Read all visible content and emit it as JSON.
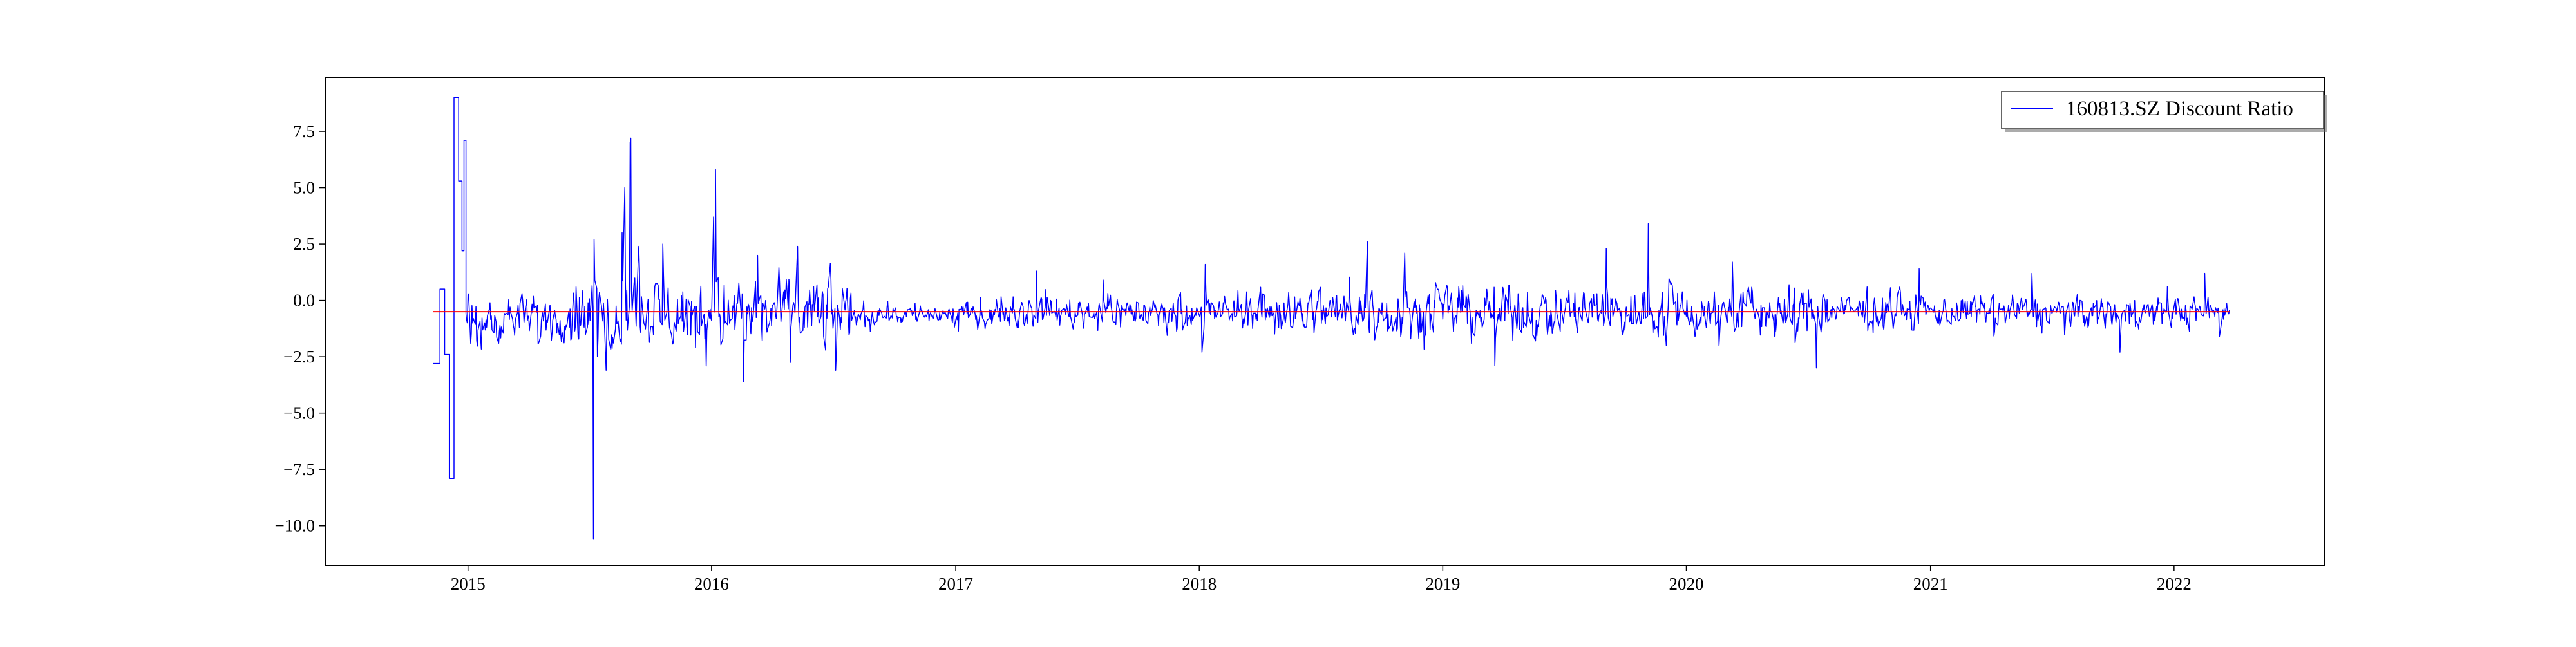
{
  "chart_data": {
    "type": "line",
    "title": "",
    "xlabel": "",
    "ylabel": "",
    "xlim": [
      "2014-06-01",
      "2022-08-15"
    ],
    "ylim": [
      -11.75,
      9.9
    ],
    "grid": false,
    "legend_position": "top-right",
    "x_ticks": [
      {
        "label": "2015",
        "date": "2015-01-01"
      },
      {
        "label": "2016",
        "date": "2016-01-01"
      },
      {
        "label": "2017",
        "date": "2017-01-01"
      },
      {
        "label": "2018",
        "date": "2018-01-01"
      },
      {
        "label": "2019",
        "date": "2019-01-01"
      },
      {
        "label": "2020",
        "date": "2020-01-01"
      },
      {
        "label": "2021",
        "date": "2021-01-01"
      },
      {
        "label": "2022",
        "date": "2022-01-01"
      }
    ],
    "y_ticks": [
      {
        "label": "7.5",
        "value": 7.5
      },
      {
        "label": "5.0",
        "value": 5.0
      },
      {
        "label": "2.5",
        "value": 2.5
      },
      {
        "label": "0.0",
        "value": 0.0
      },
      {
        "label": "−2.5",
        "value": -2.5
      },
      {
        "label": "−5.0",
        "value": -5.0
      },
      {
        "label": "−7.5",
        "value": -7.5
      },
      {
        "label": "−10.0",
        "value": -10.0
      }
    ],
    "series": [
      {
        "name": "160813.SZ Discount Ratio",
        "color": "#0000ff",
        "step_section": [
          {
            "x": "2014-11-10",
            "y": -2.8
          },
          {
            "x": "2014-11-20",
            "y": 0.5
          },
          {
            "x": "2014-11-27",
            "y": -2.4
          },
          {
            "x": "2014-12-04",
            "y": -7.9
          },
          {
            "x": "2014-12-11",
            "y": 9.0
          },
          {
            "x": "2014-12-18",
            "y": 5.3
          },
          {
            "x": "2014-12-23",
            "y": 2.2
          },
          {
            "x": "2014-12-26",
            "y": 7.1
          },
          {
            "x": "2014-12-29",
            "y": -0.6
          }
        ],
        "spikes": [
          {
            "x": "2015-06-12",
            "y": 0.6
          },
          {
            "x": "2015-07-08",
            "y": -10.6
          },
          {
            "x": "2015-07-09",
            "y": 2.7
          },
          {
            "x": "2015-07-27",
            "y": -3.1
          },
          {
            "x": "2015-08-20",
            "y": 3.0
          },
          {
            "x": "2015-08-24",
            "y": 5.0
          },
          {
            "x": "2015-09-01",
            "y": 7.0
          },
          {
            "x": "2015-09-02",
            "y": 7.2
          },
          {
            "x": "2015-09-14",
            "y": 2.4
          },
          {
            "x": "2015-10-20",
            "y": 2.5
          },
          {
            "x": "2016-01-04",
            "y": 3.7
          },
          {
            "x": "2016-01-07",
            "y": 5.8
          },
          {
            "x": "2016-02-18",
            "y": -3.6
          },
          {
            "x": "2016-03-10",
            "y": 2.0
          },
          {
            "x": "2016-05-09",
            "y": 2.4
          },
          {
            "x": "2016-07-05",
            "y": -3.1
          },
          {
            "x": "2017-05-02",
            "y": 1.3
          },
          {
            "x": "2017-08-10",
            "y": 0.9
          },
          {
            "x": "2018-01-05",
            "y": -2.3
          },
          {
            "x": "2018-01-10",
            "y": 1.6
          },
          {
            "x": "2018-09-10",
            "y": 2.6
          },
          {
            "x": "2018-11-05",
            "y": 2.1
          },
          {
            "x": "2019-03-20",
            "y": -2.9
          },
          {
            "x": "2019-09-03",
            "y": 2.3
          },
          {
            "x": "2019-11-05",
            "y": 3.4
          },
          {
            "x": "2019-12-02",
            "y": -2.0
          },
          {
            "x": "2020-03-10",
            "y": 1.7
          },
          {
            "x": "2020-07-14",
            "y": -3.0
          },
          {
            "x": "2020-12-15",
            "y": 1.4
          },
          {
            "x": "2021-06-02",
            "y": 1.2
          },
          {
            "x": "2021-10-12",
            "y": -2.3
          },
          {
            "x": "2022-02-16",
            "y": 1.2
          },
          {
            "x": "2022-03-10",
            "y": -1.6
          }
        ],
        "noise_bands": [
          {
            "from": "2015-01-01",
            "to": "2015-06-01",
            "mean": -0.8,
            "amplitude": 0.9
          },
          {
            "from": "2015-06-01",
            "to": "2016-08-01",
            "mean": -0.6,
            "amplitude": 1.5
          },
          {
            "from": "2016-08-01",
            "to": "2017-04-01",
            "mean": -0.6,
            "amplitude": 0.5
          },
          {
            "from": "2017-04-01",
            "to": "2018-04-01",
            "mean": -0.5,
            "amplitude": 0.7
          },
          {
            "from": "2018-04-01",
            "to": "2019-06-01",
            "mean": -0.5,
            "amplitude": 1.1
          },
          {
            "from": "2019-06-01",
            "to": "2020-08-01",
            "mean": -0.5,
            "amplitude": 1.1
          },
          {
            "from": "2020-08-01",
            "to": "2022-03-25",
            "mean": -0.5,
            "amplitude": 0.7
          }
        ],
        "end_date": "2022-03-25"
      },
      {
        "name": "mean-reference",
        "color": "#ff0000",
        "x": [
          "2014-11-10",
          "2022-03-25"
        ],
        "y": [
          -0.5,
          -0.5
        ]
      }
    ],
    "legend_entries": [
      {
        "label": "160813.SZ Discount Ratio",
        "color": "#0000ff"
      }
    ]
  }
}
